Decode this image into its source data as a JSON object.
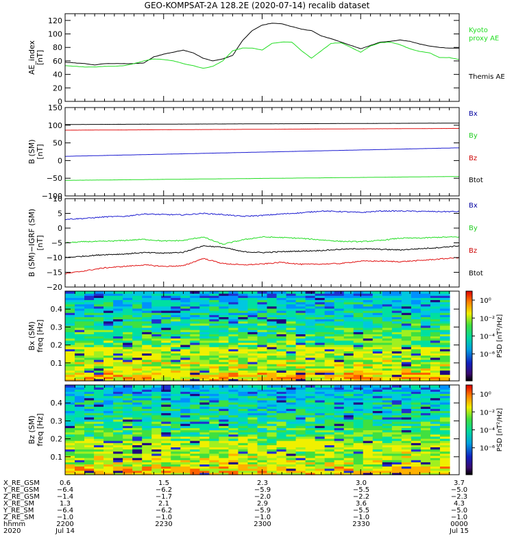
{
  "figure": {
    "title": "GEO-KOMPSAT-2A 128.2E (2020-07-14) recalib dataset"
  },
  "colors": {
    "black": "#000000",
    "red": "#e01010",
    "green": "#22dd22",
    "blue": "#1a1ad0",
    "legend_blue": "#0000a0",
    "legend_green": "#22cc22",
    "legend_red": "#cc0000"
  },
  "chart_data": [
    {
      "type": "line",
      "panel": "ae",
      "ylabel": "AE_index\n[nT]",
      "ylim": [
        0,
        130
      ],
      "yticks": [
        0,
        20,
        40,
        60,
        80,
        100,
        120
      ],
      "xlim": [
        2200,
        2400
      ],
      "legend": [
        {
          "label": "Kyoto\nproxy AE",
          "color": "green"
        },
        {
          "label": "Themis AE",
          "color": "black"
        }
      ],
      "series": [
        {
          "name": "Themis AE",
          "color": "black",
          "x": [
            2200,
            2205,
            2210,
            2215,
            2220,
            2225,
            2230,
            2235,
            2240,
            2245,
            2250,
            2255,
            2260,
            2265,
            2270,
            2275,
            2280,
            2285,
            2290,
            2295,
            2300,
            2305,
            2310,
            2315,
            2320,
            2325,
            2330,
            2335,
            2340,
            2345,
            2350,
            2355,
            2360,
            2365,
            2370,
            2375,
            2380,
            2385,
            2390,
            2395,
            2400
          ],
          "y": [
            58,
            57,
            56,
            54,
            56,
            56,
            56,
            56,
            57,
            66,
            70,
            73,
            76,
            72,
            64,
            60,
            63,
            68,
            90,
            105,
            113,
            116,
            115,
            111,
            107,
            105,
            97,
            93,
            88,
            83,
            78,
            83,
            88,
            89,
            91,
            89,
            85,
            82,
            80,
            79,
            79
          ]
        },
        {
          "name": "Kyoto proxy AE",
          "color": "green",
          "x": [
            2200,
            2205,
            2210,
            2215,
            2220,
            2225,
            2230,
            2235,
            2240,
            2245,
            2250,
            2255,
            2260,
            2265,
            2270,
            2275,
            2280,
            2285,
            2290,
            2295,
            2300,
            2305,
            2310,
            2315,
            2320,
            2325,
            2330,
            2335,
            2340,
            2345,
            2350,
            2355,
            2360,
            2365,
            2370,
            2375,
            2380,
            2385,
            2390,
            2395,
            2400
          ],
          "y": [
            53,
            52,
            51,
            51,
            52,
            52,
            53,
            56,
            60,
            63,
            62,
            60,
            56,
            53,
            49,
            52,
            60,
            75,
            79,
            79,
            76,
            86,
            88,
            88,
            75,
            64,
            75,
            86,
            87,
            80,
            73,
            82,
            87,
            88,
            84,
            78,
            74,
            72,
            65,
            65,
            62
          ]
        }
      ]
    },
    {
      "type": "line",
      "panel": "b",
      "ylabel": "B (SM)\n[nT]",
      "ylim": [
        -100,
        150
      ],
      "yticks": [
        -100,
        -50,
        0,
        50,
        100,
        150
      ],
      "xlim": [
        2200,
        2400
      ],
      "legend": [
        {
          "label": "Bx",
          "color": "legend_blue"
        },
        {
          "label": "By",
          "color": "legend_green"
        },
        {
          "label": "Bz",
          "color": "legend_red"
        },
        {
          "label": "Btot",
          "color": "black"
        }
      ],
      "series": [
        {
          "name": "Btot",
          "color": "black",
          "x": [
            2200,
            2400
          ],
          "y": [
            102,
            106
          ]
        },
        {
          "name": "Bz",
          "color": "red",
          "x": [
            2200,
            2400
          ],
          "y": [
            86,
            91
          ]
        },
        {
          "name": "Bx",
          "color": "blue",
          "x": [
            2200,
            2400
          ],
          "y": [
            12,
            36
          ]
        },
        {
          "name": "By",
          "color": "green",
          "x": [
            2200,
            2400
          ],
          "y": [
            -56,
            -45
          ]
        }
      ]
    },
    {
      "type": "line",
      "panel": "db",
      "ylabel": "B (SM)−IGRF (SM)\n[nT]",
      "ylim": [
        -20,
        10
      ],
      "yticks": [
        -20,
        -15,
        -10,
        -5,
        0,
        5,
        10
      ],
      "xlim": [
        2200,
        2400
      ],
      "legend": [
        {
          "label": "Bx",
          "color": "legend_blue"
        },
        {
          "label": "By",
          "color": "legend_green"
        },
        {
          "label": "Bz",
          "color": "legend_red"
        },
        {
          "label": "Btot",
          "color": "black"
        }
      ],
      "series": [
        {
          "name": "Bx",
          "color": "blue",
          "x": [
            2200,
            2210,
            2220,
            2230,
            2240,
            2250,
            2260,
            2270,
            2280,
            2290,
            2300,
            2310,
            2320,
            2330,
            2340,
            2350,
            2360,
            2370,
            2380,
            2390,
            2400
          ],
          "y": [
            3,
            3.3,
            3.8,
            4,
            4.8,
            4.6,
            4.5,
            5,
            4.6,
            4,
            4.3,
            4.8,
            5.2,
            5.8,
            5.6,
            5.3,
            5.8,
            5.8,
            5.7,
            5.6,
            5.6
          ]
        },
        {
          "name": "By",
          "color": "green",
          "x": [
            2200,
            2210,
            2220,
            2230,
            2240,
            2250,
            2260,
            2270,
            2280,
            2290,
            2300,
            2310,
            2320,
            2330,
            2340,
            2350,
            2360,
            2370,
            2380,
            2390,
            2400
          ],
          "y": [
            -5,
            -4.6,
            -4.5,
            -4.2,
            -3.8,
            -4.4,
            -4.2,
            -3,
            -5.5,
            -4,
            -3,
            -3.2,
            -3.5,
            -4,
            -4.5,
            -4.6,
            -4.2,
            -3.4,
            -3.4,
            -3.1,
            -3
          ]
        },
        {
          "name": "Btot",
          "color": "black",
          "x": [
            2200,
            2210,
            2220,
            2230,
            2240,
            2250,
            2260,
            2270,
            2280,
            2290,
            2300,
            2310,
            2320,
            2330,
            2340,
            2350,
            2360,
            2370,
            2380,
            2390,
            2400
          ],
          "y": [
            -10,
            -9.5,
            -9,
            -8.8,
            -8.3,
            -8.5,
            -8.2,
            -6,
            -6.5,
            -8,
            -8.3,
            -8,
            -7.8,
            -7.6,
            -7.2,
            -7,
            -7.2,
            -7.4,
            -7,
            -6.6,
            -6
          ]
        },
        {
          "name": "Bz",
          "color": "red",
          "x": [
            2200,
            2210,
            2220,
            2230,
            2240,
            2250,
            2260,
            2270,
            2280,
            2290,
            2300,
            2310,
            2320,
            2330,
            2340,
            2350,
            2360,
            2370,
            2380,
            2390,
            2400
          ],
          "y": [
            -15.5,
            -14.5,
            -13.5,
            -13,
            -12.5,
            -13,
            -12.8,
            -10.3,
            -12,
            -12.5,
            -12.2,
            -11.6,
            -12.3,
            -12.2,
            -12,
            -11.2,
            -11.2,
            -11.4,
            -11,
            -10.5,
            -10
          ]
        }
      ]
    },
    {
      "type": "heatmap",
      "panel": "bx_spec",
      "ylabel": "Bx (SM)\nfreq [Hz]",
      "ylim": [
        0,
        0.5
      ],
      "yticks": [
        0.1,
        0.2,
        0.3,
        0.4
      ],
      "xlim": [
        2200,
        2400
      ],
      "colorbar": {
        "label": "PSD [nT²/Hz]",
        "scale": "log",
        "range": [
          1e-09,
          10.0
        ],
        "ticks": [
          "10⁰",
          "10⁻²",
          "10⁻⁴",
          "10⁻⁶"
        ]
      }
    },
    {
      "type": "heatmap",
      "panel": "bz_spec",
      "ylabel": "Bz (SM)\nfreq [Hz]",
      "ylim": [
        0,
        0.5
      ],
      "yticks": [
        0.1,
        0.2,
        0.3,
        0.4
      ],
      "xlim": [
        2200,
        2400
      ],
      "colorbar": {
        "label": "PSD [nT²/Hz]",
        "scale": "log",
        "range": [
          1e-09,
          10.0
        ],
        "ticks": [
          "10⁰",
          "10⁻²",
          "10⁻⁴",
          "10⁻⁶"
        ]
      }
    }
  ],
  "ephemeris": {
    "labels": [
      "X_RE_GSM",
      "Y_RE_GSM",
      "Z_RE_GSM",
      "X_RE_SM",
      "Y_RE_SM",
      "Z_RE_SM",
      "hhmm",
      "2020"
    ],
    "columns": [
      [
        "0.6",
        "−6.4",
        "−1.4",
        "1.3",
        "−6.4",
        "−1.0",
        "2200",
        "Jul 14"
      ],
      [
        "1.5",
        "−6.2",
        "−1.7",
        "2.1",
        "−6.2",
        "−1.0",
        "2230",
        ""
      ],
      [
        "2.3",
        "−5.9",
        "−2.0",
        "2.9",
        "−5.9",
        "−1.0",
        "2300",
        ""
      ],
      [
        "3.0",
        "−5.5",
        "−2.2",
        "3.6",
        "−5.5",
        "−1.0",
        "2330",
        ""
      ],
      [
        "3.7",
        "−5.0",
        "−2.3",
        "4.3",
        "−5.0",
        "−1.0",
        "0000",
        "Jul 15"
      ]
    ]
  }
}
